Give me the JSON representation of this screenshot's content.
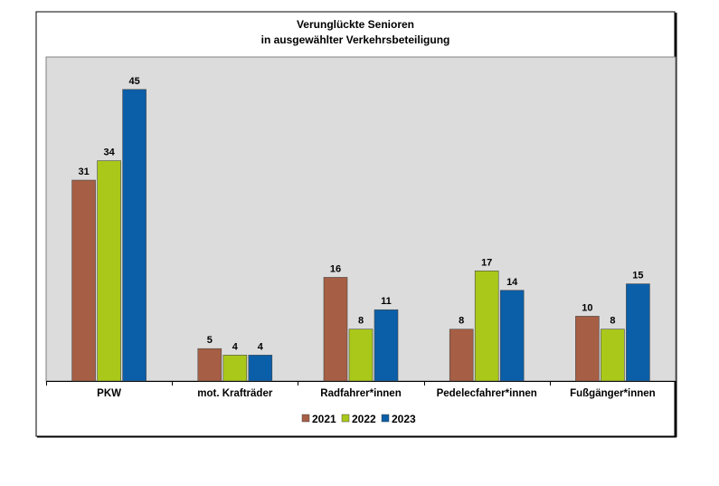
{
  "chart_data": {
    "type": "bar",
    "title": [
      "Verunglückte Senioren",
      "in ausgewählter Verkehrsbeteiligung"
    ],
    "xlabel": "",
    "ylabel": "",
    "categories": [
      "PKW",
      "mot. Krafträder",
      "Radfahrer*innen",
      "Pedelecfahrer*innen",
      "Fußgänger*innen"
    ],
    "series": [
      {
        "name": "2021",
        "color": "#A65E44",
        "values": [
          31,
          5,
          16,
          8,
          10
        ]
      },
      {
        "name": "2022",
        "color": "#A9C81A",
        "values": [
          34,
          4,
          8,
          17,
          8
        ]
      },
      {
        "name": "2023",
        "color": "#0B5EA8",
        "values": [
          45,
          4,
          11,
          14,
          15
        ]
      }
    ],
    "ylim": [
      0,
      50
    ],
    "grid": false,
    "legend_position": "bottom",
    "plot_background": "#DCDCDC"
  }
}
